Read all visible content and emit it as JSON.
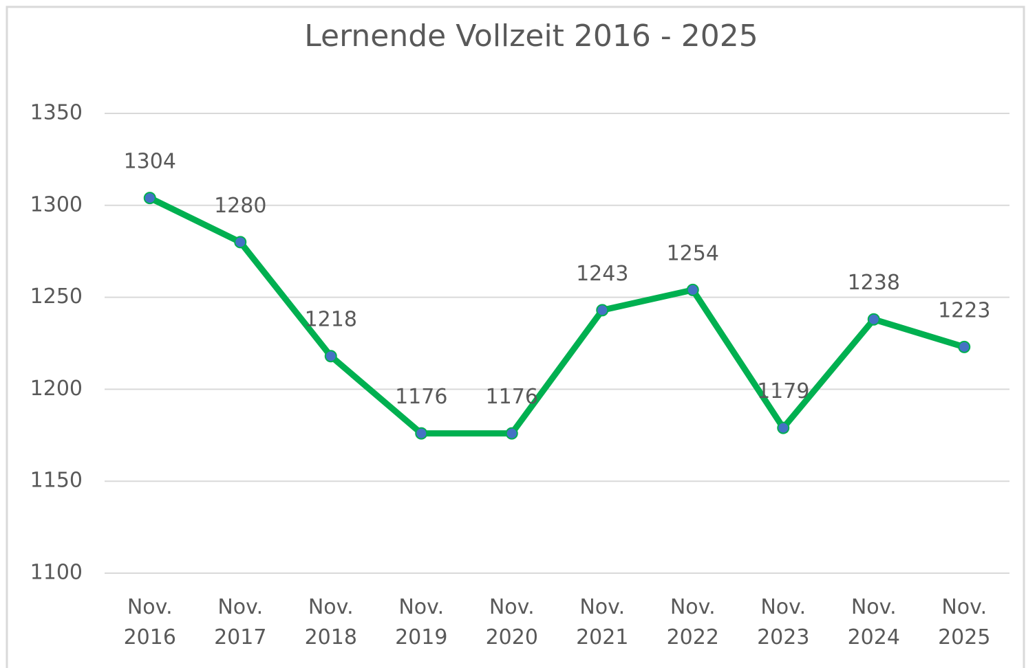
{
  "chart_data": {
    "type": "line",
    "title": "Lernende Vollzeit 2016 - 2025",
    "categories": [
      "Nov. 2016",
      "Nov. 2017",
      "Nov. 2018",
      "Nov. 2019",
      "Nov. 2020",
      "Nov. 2021",
      "Nov. 2022",
      "Nov. 2023",
      "Nov. 2024",
      "Nov. 2025"
    ],
    "series": [
      {
        "name": "Lernende Vollzeit",
        "color": "#00b050",
        "marker_color": "#4472c4",
        "values": [
          1304,
          1280,
          1218,
          1176,
          1176,
          1243,
          1254,
          1179,
          1238,
          1223
        ]
      }
    ],
    "ylim": [
      1100,
      1350
    ],
    "yticks": [
      1100,
      1150,
      1200,
      1250,
      1300,
      1350
    ],
    "grid": true
  }
}
